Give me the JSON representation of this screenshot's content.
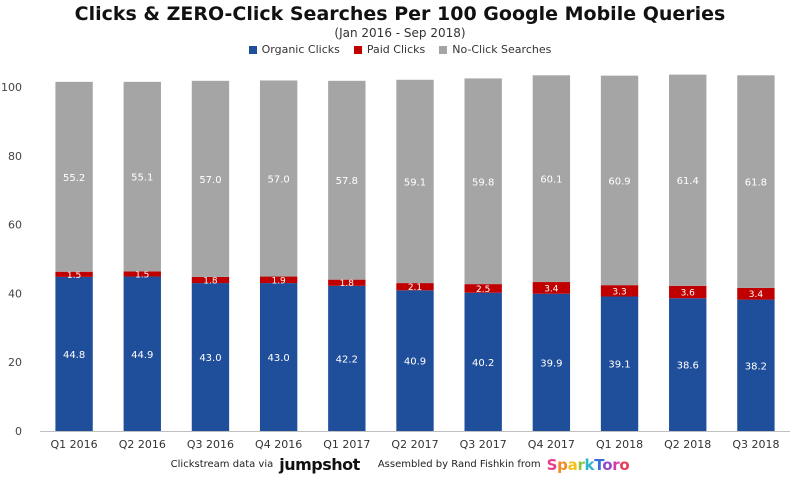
{
  "chart_data": {
    "type": "bar",
    "stacked": true,
    "title": "Clicks & ZERO-Click Searches Per 100 Google Mobile Queries",
    "subtitle": "(Jan 2016 - Sep 2018)",
    "xlabel": "",
    "ylabel": "",
    "ylim": [
      0,
      100
    ],
    "yticks": [
      0,
      20,
      40,
      60,
      80,
      100
    ],
    "grid": false,
    "legend_position": "top",
    "categories": [
      "Q1 2016",
      "Q2 2016",
      "Q3 2016",
      "Q4 2016",
      "Q1 2017",
      "Q2 2017",
      "Q3 2017",
      "Q4 2017",
      "Q1 2018",
      "Q2 2018",
      "Q3 2018"
    ],
    "series": [
      {
        "name": "Organic Clicks",
        "color": "#1f4e9a",
        "values": [
          44.8,
          44.9,
          43.0,
          43.0,
          42.2,
          40.9,
          40.2,
          39.9,
          39.1,
          38.6,
          38.2
        ]
      },
      {
        "name": "Paid Clicks",
        "color": "#c00000",
        "values": [
          1.5,
          1.5,
          1.8,
          1.9,
          1.8,
          2.1,
          2.5,
          3.4,
          3.3,
          3.6,
          3.4
        ]
      },
      {
        "name": "No-Click Searches",
        "color": "#a5a5a5",
        "values": [
          55.2,
          55.1,
          57.0,
          57.0,
          57.8,
          59.1,
          59.8,
          60.1,
          60.9,
          61.4,
          61.8
        ]
      }
    ]
  },
  "footer": {
    "left_text": "Clickstream data via",
    "left_logo": "jumpshot",
    "right_text": "Assembled by Rand Fishkin from",
    "right_logo": "SparkToro"
  }
}
